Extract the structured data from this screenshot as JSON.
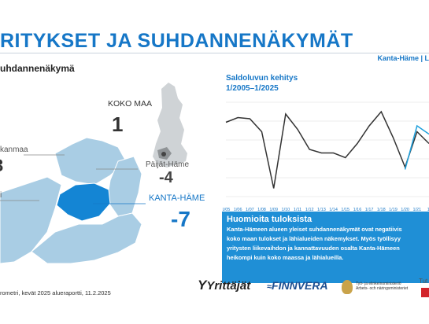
{
  "header": {
    "title": "RITYKSET JA SUHDANNENÄKYMÄT",
    "region_tag": "Kanta-Häme | L",
    "subtitle": "uhdannenäkymä"
  },
  "map": {
    "koko_maa_label": "KOKO MAA",
    "koko_maa_value": "1",
    "left_label_1": "kanmaa",
    "left_value_1": "3",
    "left_label_2": "i",
    "paijat_hame_label": "Päijät-Häme",
    "paijat_hame_value": "-4",
    "kanta_hame_label": "KANTA-HÄME",
    "kanta_hame_value": "-7"
  },
  "chart_data": {
    "type": "line",
    "title": "Saldoluvun kehitys",
    "subtitle": "1/2005–1/2025",
    "categories": [
      "1/05",
      "1/06",
      "1/07",
      "1/08",
      "1/09",
      "1/10",
      "1/11",
      "1/12",
      "1/13",
      "1/14",
      "1/15",
      "1/16",
      "1/17",
      "1/18",
      "1/19",
      "1/20",
      "1/21",
      "1/"
    ],
    "series": [
      {
        "name": "",
        "color": "#333333",
        "values": [
          18,
          22,
          21,
          10,
          -38,
          25,
          12,
          -5,
          -8,
          -8,
          -12,
          0,
          15,
          27,
          5,
          -20,
          10,
          0
        ]
      },
      {
        "name": "",
        "color": "#1fa0dc",
        "values": [
          null,
          null,
          null,
          null,
          null,
          null,
          null,
          null,
          null,
          null,
          null,
          null,
          null,
          null,
          null,
          -22,
          15,
          8
        ]
      }
    ],
    "ylim": [
      -45,
      35
    ],
    "grid": true
  },
  "note": {
    "heading": "Huomioita tuloksista",
    "lines": [
      "Kanta-Hämeen alueen yleiset suhdannenäkymät ovat negatiivis",
      "koko maan tulokset ja lähialueiden näkemykset. Myös työllisyy",
      "yritysten liikevaihdon ja kannattavuuden osalta Kanta-Hämeen",
      "heikompi kuin koko maassa ja lähialueilla."
    ]
  },
  "footer": {
    "source": "rometri, kevät 2025 alueraportti, 11.2.2025",
    "logo_yrittajat": "Yrittäjät",
    "logo_finnvera": "FINNVERA",
    "logo_tem_line1": "Työ- ja elinkeinoministeriö",
    "logo_tem_line2": "Arbets- och näringsministeriet",
    "logo_tut": "Tut"
  }
}
